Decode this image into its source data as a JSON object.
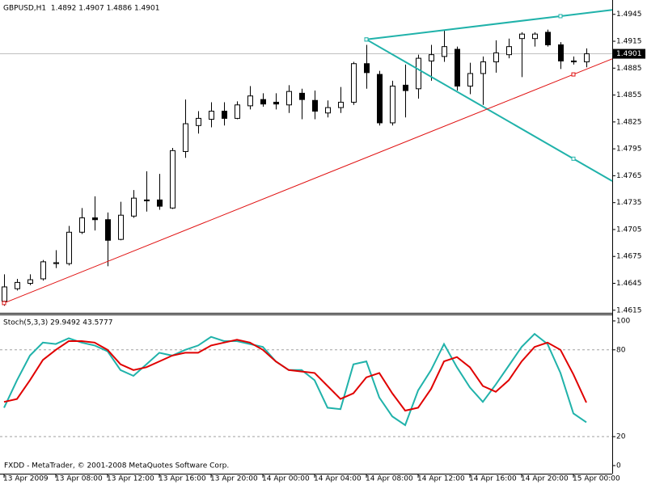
{
  "chart_data": [
    {
      "type": "candlestick",
      "title": "GBPUSD,H1  1.4892 1.4907 1.4886 1.4901",
      "open": [
        1.4625,
        1.4639,
        1.4645,
        1.465,
        1.4667,
        1.4667,
        1.4702,
        1.4718,
        1.4716,
        1.4694,
        1.472,
        1.4738,
        1.4738,
        1.4729,
        1.4792,
        1.4821,
        1.4828,
        1.4837,
        1.4829,
        1.4843,
        1.485,
        1.4847,
        1.4844,
        1.4857,
        1.4849,
        1.4835,
        1.4841,
        1.4847,
        1.489,
        1.4878,
        1.4824,
        1.4866,
        1.4862,
        1.4893,
        1.4898,
        1.4906,
        1.4865,
        1.4879,
        1.4892,
        1.49,
        1.4918,
        1.4918,
        1.4925,
        1.4911,
        1.4893,
        1.4892
      ],
      "high": [
        1.4655,
        1.465,
        1.4655,
        1.4671,
        1.4682,
        1.4709,
        1.4729,
        1.4742,
        1.4724,
        1.4736,
        1.4749,
        1.477,
        1.4767,
        1.4796,
        1.485,
        1.4837,
        1.4847,
        1.4847,
        1.4848,
        1.4865,
        1.4857,
        1.4857,
        1.4866,
        1.4862,
        1.486,
        1.4849,
        1.4864,
        1.4892,
        1.4911,
        1.4882,
        1.4871,
        1.4889,
        1.49,
        1.4911,
        1.4928,
        1.4909,
        1.4891,
        1.4898,
        1.4916,
        1.4918,
        1.4925,
        1.4925,
        1.4928,
        1.4914,
        1.4898,
        1.4907
      ],
      "low": [
        1.462,
        1.4637,
        1.4643,
        1.4648,
        1.4662,
        1.4665,
        1.47,
        1.4704,
        1.4664,
        1.4693,
        1.4718,
        1.4725,
        1.4727,
        1.4728,
        1.4785,
        1.4812,
        1.4819,
        1.4821,
        1.4828,
        1.4839,
        1.4842,
        1.4839,
        1.4835,
        1.4828,
        1.4828,
        1.483,
        1.4835,
        1.4844,
        1.4862,
        1.4821,
        1.4821,
        1.483,
        1.4851,
        1.4871,
        1.4892,
        1.486,
        1.4856,
        1.4844,
        1.488,
        1.4896,
        1.4875,
        1.4909,
        1.4909,
        1.4884,
        1.4889,
        1.4886
      ],
      "close": [
        1.4641,
        1.4646,
        1.4649,
        1.4669,
        1.4668,
        1.4702,
        1.4718,
        1.4716,
        1.4693,
        1.4721,
        1.474,
        1.4737,
        1.4731,
        1.4793,
        1.4823,
        1.4829,
        1.4837,
        1.4829,
        1.4844,
        1.4854,
        1.4845,
        1.4845,
        1.4859,
        1.485,
        1.4837,
        1.4841,
        1.4847,
        1.489,
        1.488,
        1.4824,
        1.4865,
        1.486,
        1.4896,
        1.49,
        1.4909,
        1.4865,
        1.4879,
        1.4892,
        1.4902,
        1.4909,
        1.4923,
        1.4923,
        1.4911,
        1.4893,
        1.4892,
        1.4901
      ],
      "up_color": "#ffffff",
      "down_color": "#000000",
      "xlim": [
        -0.3125,
        47
      ],
      "ylim": [
        1.4613,
        1.4961
      ],
      "yticks": [
        1.4615,
        1.4645,
        1.4675,
        1.4705,
        1.4735,
        1.4765,
        1.4795,
        1.4825,
        1.4855,
        1.4885,
        1.4915,
        1.4945
      ],
      "current_price": 1.4901,
      "trendlines": [
        {
          "color": "#20b2aa",
          "x": [
            28,
            43
          ],
          "y": [
            1.4917,
            1.4943
          ]
        },
        {
          "color": "#20b2aa",
          "x": [
            28,
            44
          ],
          "y": [
            1.4917,
            1.4784
          ]
        },
        {
          "color": "#e01010",
          "x": [
            0,
            44
          ],
          "y": [
            1.4623,
            1.4878
          ]
        }
      ]
    },
    {
      "type": "line",
      "title": "Stoch(5,3,3) 29.9492 43.5777",
      "series": [
        {
          "color": "#20b2aa",
          "values": [
            40,
            59,
            76,
            85,
            84,
            88,
            85,
            83,
            79,
            66,
            62,
            70,
            78,
            76,
            80,
            83,
            89,
            86,
            86,
            84,
            82,
            72,
            66,
            66,
            59,
            40,
            39,
            70,
            72,
            47,
            34,
            28,
            52,
            66,
            84,
            68,
            54,
            44,
            56,
            69,
            82,
            91,
            84,
            64,
            36,
            29.9492
          ]
        },
        {
          "color": "#e00000",
          "values": [
            44,
            46,
            59,
            73,
            80,
            86,
            86,
            85,
            80,
            70,
            66,
            68,
            72,
            76,
            78,
            78,
            83,
            85,
            87,
            85,
            80,
            72,
            66,
            65,
            64,
            55,
            46,
            50,
            61,
            64,
            50,
            38,
            40,
            53,
            72,
            75,
            68,
            55,
            51,
            59,
            72,
            82,
            85,
            80,
            63,
            43.5777
          ]
        }
      ],
      "xlim": [
        -0.3125,
        47
      ],
      "ylim": [
        -5.6,
        103.9
      ],
      "yticks": [
        0,
        20,
        80,
        100
      ],
      "levels": [
        20,
        80
      ],
      "xticks": [
        {
          "value": 0,
          "label": "13 Apr 2009"
        },
        {
          "value": 4,
          "label": "13 Apr 08:00"
        },
        {
          "value": 8,
          "label": "13 Apr 12:00"
        },
        {
          "value": 12,
          "label": "13 Apr 16:00"
        },
        {
          "value": 16,
          "label": "13 Apr 20:00"
        },
        {
          "value": 20,
          "label": "14 Apr 00:00"
        },
        {
          "value": 24,
          "label": "14 Apr 04:00"
        },
        {
          "value": 28,
          "label": "14 Apr 08:00"
        },
        {
          "value": 32,
          "label": "14 Apr 12:00"
        },
        {
          "value": 36,
          "label": "14 Apr 16:00"
        },
        {
          "value": 40,
          "label": "14 Apr 20:00"
        },
        {
          "value": 44,
          "label": "15 Apr 00:00"
        }
      ],
      "footer": "FXDD - MetaTrader, © 2001-2008 MetaQuotes Software Corp."
    }
  ]
}
